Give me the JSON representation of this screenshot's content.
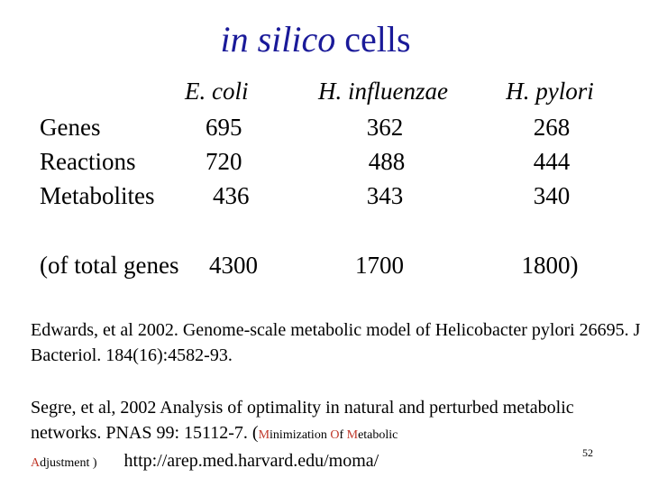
{
  "title": {
    "italic": "in silico",
    "plain": " cells"
  },
  "table": {
    "columns": [
      "E. coli",
      "H. influenzae",
      "H. pylori"
    ],
    "rows": [
      {
        "label": "Genes",
        "values": [
          "695",
          "362",
          "268"
        ]
      },
      {
        "label": "Reactions",
        "values": [
          "720",
          "488",
          "444"
        ]
      },
      {
        "label": "Metabolites",
        "values": [
          "436",
          "343",
          "340"
        ]
      }
    ],
    "total_label": "(of total genes",
    "total_values": [
      "4300",
      "1700",
      "1800)"
    ]
  },
  "references": {
    "edwards": "Edwards, et al  2002. Genome-scale metabolic model of Helicobacter pylori 26695. J Bacteriol. 184(16):4582-93.",
    "segre_main": "Segre, et al, 2002 Analysis of optimality in natural and perturbed metabolic networks. PNAS 99: 15112-7. (",
    "moma": {
      "m1": "M",
      "r1": "inimization ",
      "o": "O",
      "r2": "f ",
      "m2": "M",
      "r3": "etabolic",
      "a": "A",
      "r4": "djustment )"
    },
    "url": "http://arep.med.harvard.edu/moma/"
  },
  "page_number": "52",
  "colors": {
    "title": "#1a1a99",
    "acronym": "#c0392b"
  }
}
